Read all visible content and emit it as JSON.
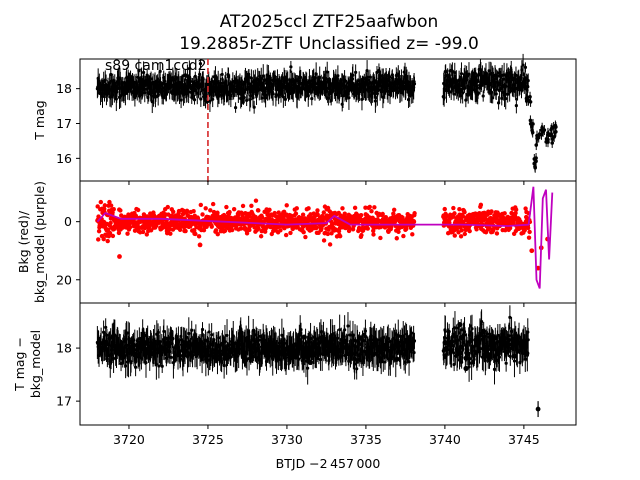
{
  "figure": {
    "title_line1": "AT2025ccl  ZTF25aafwbon",
    "title_line2": "19.2885r-ZTF Unclassified z= -99.0",
    "xlabel": "BTJD −2 457 000",
    "annotation": "s89 cam1ccd2"
  },
  "chart_data": [
    {
      "type": "scatter",
      "panel": "top",
      "ylabel": "T mag",
      "xlim": [
        3716.9,
        3748.3
      ],
      "ylim": [
        18.85,
        15.35
      ],
      "y_inverted": true,
      "x_ticks": [
        3720,
        3725,
        3730,
        3735,
        3740,
        3745
      ],
      "y_ticks": [
        16,
        17,
        18
      ],
      "y_tick_labels": [
        "16",
        "17",
        "18"
      ],
      "vline_x": 3725.0,
      "vline_color": "#d62728",
      "series_color": "#000000",
      "segments": [
        {
          "x_start": 3718.0,
          "x_end": 3738.1,
          "y_level": 18.05,
          "scatter": 0.35
        },
        {
          "x_start": 3739.9,
          "x_end": 3745.3,
          "y_level": 18.15,
          "scatter": 0.45
        }
      ],
      "rise_points": [
        {
          "x": 3745.3,
          "y": 17.6
        },
        {
          "x": 3745.5,
          "y": 16.9
        },
        {
          "x": 3745.7,
          "y": 15.8
        },
        {
          "x": 3745.9,
          "y": 16.6
        },
        {
          "x": 3746.2,
          "y": 16.7
        },
        {
          "x": 3746.5,
          "y": 16.5
        },
        {
          "x": 3746.8,
          "y": 16.6
        },
        {
          "x": 3747.0,
          "y": 16.8
        }
      ]
    },
    {
      "type": "scatter",
      "panel": "middle",
      "ylabel_line1": "Bkg (red)/",
      "ylabel_line2": "bkg_model (purple)",
      "xlim": [
        3716.9,
        3748.3
      ],
      "ylim": [
        -14,
        28
      ],
      "x_ticks": [
        3720,
        3725,
        3730,
        3735,
        3740,
        3745
      ],
      "y_ticks": [
        0,
        20
      ],
      "y_tick_labels": [
        "0",
        "20"
      ],
      "bkg_color": "#ff0000",
      "model_color": "#bf00bf",
      "segments": [
        {
          "x_start": 3718.0,
          "x_end": 3738.1,
          "level": 0,
          "scatter": 3.5
        },
        {
          "x_start": 3739.9,
          "x_end": 3745.4,
          "level": 0,
          "scatter": 3.5
        }
      ],
      "model_points": [
        {
          "x": 3718.0,
          "y": 0
        },
        {
          "x": 3718.5,
          "y": -3
        },
        {
          "x": 3719.5,
          "y": -1
        },
        {
          "x": 3722,
          "y": -1
        },
        {
          "x": 3726,
          "y": 0
        },
        {
          "x": 3730,
          "y": 1
        },
        {
          "x": 3732.5,
          "y": 0.5
        },
        {
          "x": 3733,
          "y": -2
        },
        {
          "x": 3734,
          "y": 1
        },
        {
          "x": 3738,
          "y": 1
        },
        {
          "x": 3741,
          "y": 1
        },
        {
          "x": 3744,
          "y": 1.5
        },
        {
          "x": 3745.3,
          "y": 1
        },
        {
          "x": 3745.6,
          "y": -12
        },
        {
          "x": 3745.8,
          "y": 20
        },
        {
          "x": 3746.0,
          "y": 23
        },
        {
          "x": 3746.2,
          "y": -8
        },
        {
          "x": 3746.4,
          "y": -11
        },
        {
          "x": 3746.6,
          "y": 13
        },
        {
          "x": 3746.8,
          "y": -10
        }
      ],
      "extra_bkg_points": [
        {
          "x": 3719.4,
          "y": 12
        },
        {
          "x": 3724.5,
          "y": 8
        },
        {
          "x": 3745.5,
          "y": 10
        },
        {
          "x": 3745.9,
          "y": 16
        },
        {
          "x": 3746.1,
          "y": 9
        },
        {
          "x": 3746.5,
          "y": 6
        }
      ]
    },
    {
      "type": "scatter",
      "panel": "bottom",
      "ylabel_line1": "T mag −",
      "ylabel_line2": "bkg_model",
      "xlim": [
        3716.9,
        3748.3
      ],
      "ylim": [
        18.85,
        16.55
      ],
      "y_inverted": true,
      "x_ticks": [
        3720,
        3725,
        3730,
        3735,
        3740,
        3745
      ],
      "x_tick_labels": [
        "3720",
        "3725",
        "3730",
        "3735",
        "3740",
        "3745"
      ],
      "y_ticks": [
        17,
        18
      ],
      "y_tick_labels": [
        "17",
        "18"
      ],
      "series_color": "#000000",
      "segments": [
        {
          "x_start": 3718.0,
          "x_end": 3738.1,
          "y_level": 18.0,
          "scatter": 0.28
        },
        {
          "x_start": 3739.9,
          "x_end": 3745.3,
          "y_level": 18.05,
          "scatter": 0.32
        }
      ],
      "outlier_points": [
        {
          "x": 3745.9,
          "y": 16.85,
          "err": 0.15
        }
      ]
    }
  ]
}
